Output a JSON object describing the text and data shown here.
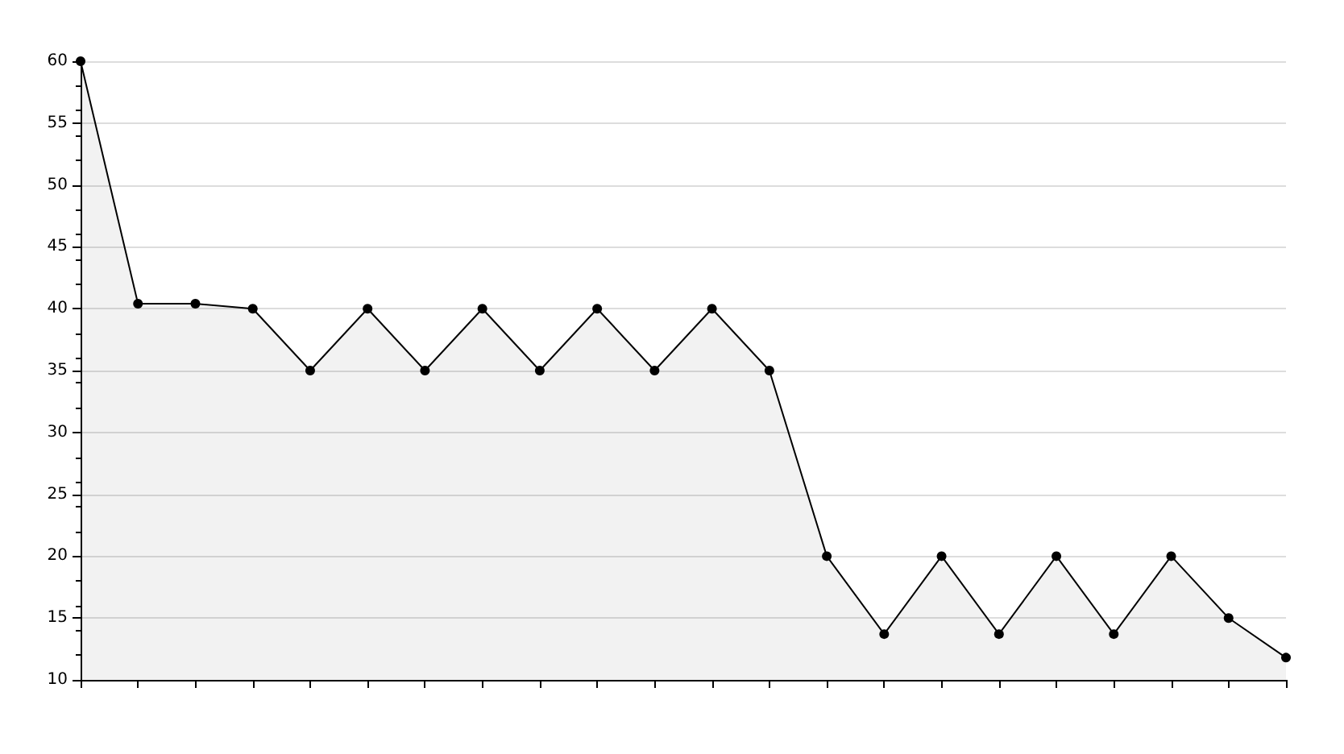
{
  "chart_data": {
    "type": "area",
    "categories": [
      null,
      null,
      null,
      null,
      null,
      null,
      null,
      null,
      null,
      null,
      null,
      null,
      null,
      null,
      null,
      null,
      null,
      null,
      null,
      null,
      null,
      null
    ],
    "series": [
      {
        "color": "#000000",
        "values": [
          60,
          40.4,
          40.4,
          40,
          35,
          40,
          35,
          40,
          35,
          40,
          35,
          40,
          35,
          20,
          13.7,
          20,
          13.7,
          20,
          13.7,
          20,
          15,
          11.8
        ]
      }
    ],
    "ylim": [
      10,
      60
    ],
    "yticks": [
      10,
      15,
      20,
      25,
      30,
      35,
      40,
      45,
      50,
      55,
      60
    ],
    "grid": "y",
    "marker": "circle"
  }
}
